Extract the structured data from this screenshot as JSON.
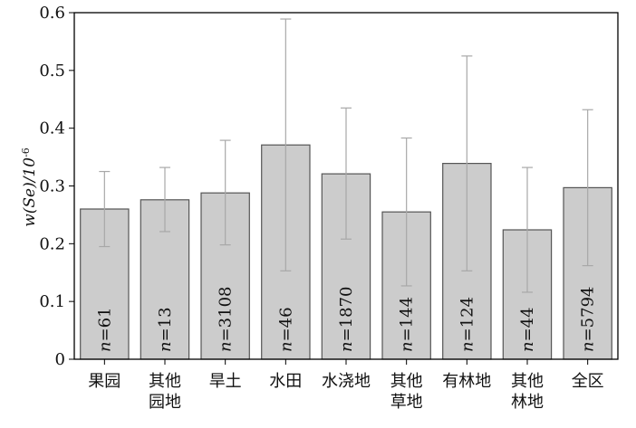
{
  "chart_data": {
    "type": "bar",
    "title": "",
    "xlabel": "",
    "ylabel": {
      "main": "w(Se)/10",
      "sup": "-6"
    },
    "ylim": [
      0,
      0.6
    ],
    "yticks": [
      "0",
      "0.1",
      "0.2",
      "0.3",
      "0.4",
      "0.5",
      "0.6"
    ],
    "ytick_values": [
      0,
      0.1,
      0.2,
      0.3,
      0.4,
      0.5,
      0.6
    ],
    "categories": [
      {
        "lines": [
          "果园"
        ]
      },
      {
        "lines": [
          "其他",
          "园地"
        ]
      },
      {
        "lines": [
          "旱土"
        ]
      },
      {
        "lines": [
          "水田"
        ]
      },
      {
        "lines": [
          "水浇地"
        ]
      },
      {
        "lines": [
          "其他",
          "草地"
        ]
      },
      {
        "lines": [
          "有林地"
        ]
      },
      {
        "lines": [
          "其他",
          "林地"
        ]
      },
      {
        "lines": [
          "全区"
        ]
      }
    ],
    "values": [
      0.26,
      0.276,
      0.288,
      0.371,
      0.321,
      0.255,
      0.339,
      0.224,
      0.297
    ],
    "error_low": [
      0.195,
      0.221,
      0.198,
      0.153,
      0.208,
      0.127,
      0.153,
      0.116,
      0.162
    ],
    "error_high": [
      0.325,
      0.332,
      0.379,
      0.589,
      0.435,
      0.383,
      0.525,
      0.332,
      0.432
    ],
    "sample_labels": [
      "n=61",
      "n=13",
      "n=3108",
      "n=46",
      "n=1870",
      "n=144",
      "n=124",
      "n=44",
      "n=5794"
    ],
    "grid": false,
    "colors": {
      "bar_fill": "#cccccc",
      "bar_stroke": "#555555",
      "errorbar": "#a8a8a8",
      "axis": "#000000"
    }
  }
}
